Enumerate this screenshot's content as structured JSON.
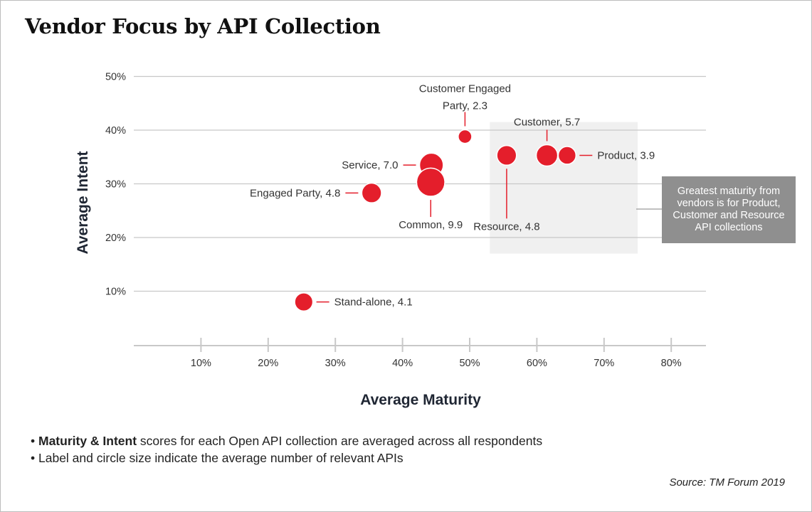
{
  "title": "Vendor Focus by API Collection",
  "notes": [
    {
      "bold": "Maturity & Intent",
      "text": " scores for each Open API collection are averaged across all respondents"
    },
    {
      "bold": "",
      "text": "Label and circle size indicate the average number of relevant APIs"
    }
  ],
  "source": "Source: TM Forum 2019",
  "callout": "Greatest maturity from vendors is for Product, Customer and Resource API collections",
  "colors": {
    "bubble": "#e41e2b",
    "grid": "#c8c8c8",
    "highlight": "#f0f0f0",
    "callout": "#8f8f8f",
    "text": "#333333"
  },
  "chart_data": {
    "type": "scatter",
    "title": "Vendor Focus by API Collection",
    "xlabel": "Average Maturity",
    "ylabel": "Average Intent",
    "x_ticks": [
      "10%",
      "20%",
      "30%",
      "40%",
      "50%",
      "60%",
      "70%",
      "80%"
    ],
    "y_ticks": [
      "10%",
      "20%",
      "30%",
      "40%",
      "50%"
    ],
    "xlim": [
      0,
      85
    ],
    "ylim": [
      0,
      50
    ],
    "grid": "horizontal",
    "highlight_region": {
      "x": [
        53,
        75
      ],
      "y": [
        17,
        41.5
      ]
    },
    "points": [
      {
        "name": "Customer Engaged Party",
        "size": 2.3,
        "label": "Customer Engaged Party, 2.3",
        "x": 49.3,
        "y": 38.8
      },
      {
        "name": "Customer",
        "size": 5.7,
        "label": "Customer, 5.7",
        "x": 61.5,
        "y": 35.3
      },
      {
        "name": "Product",
        "size": 3.9,
        "label": "Product, 3.9",
        "x": 64.5,
        "y": 35.3
      },
      {
        "name": "Resource",
        "size": 4.8,
        "label": "Resource, 4.8",
        "x": 55.5,
        "y": 35.3
      },
      {
        "name": "Service",
        "size": 7.0,
        "label": "Service, 7.0",
        "x": 44.3,
        "y": 33.5
      },
      {
        "name": "Common",
        "size": 9.9,
        "label": "Common, 9.9",
        "x": 44.2,
        "y": 30.3
      },
      {
        "name": "Engaged Party",
        "size": 4.8,
        "label": "Engaged Party, 4.8",
        "x": 35.4,
        "y": 28.3
      },
      {
        "name": "Stand-alone",
        "size": 4.1,
        "label": "Stand-alone, 4.1",
        "x": 25.3,
        "y": 8.0
      }
    ]
  }
}
